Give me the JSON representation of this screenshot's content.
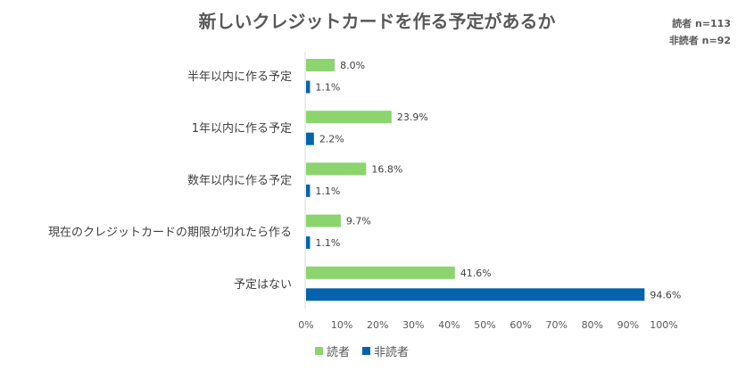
{
  "chart_data": {
    "type": "bar",
    "orientation": "horizontal",
    "title": "新しいクレジットカードを作る予定があるか",
    "categories": [
      "半年以内に作る予定",
      "1年以内に作る予定",
      "数年以内に作る予定",
      "現在のクレジットカードの期限が切れたら作る",
      "予定はない"
    ],
    "series": [
      {
        "name": "読者",
        "values": [
          8.0,
          23.9,
          16.8,
          9.7,
          41.6
        ],
        "color": "#8CD46E"
      },
      {
        "name": "非読者",
        "values": [
          1.1,
          2.2,
          1.1,
          1.1,
          94.6
        ],
        "color": "#0563AD"
      }
    ],
    "xlim": [
      0,
      100
    ],
    "xticks": [
      "0%",
      "10%",
      "20%",
      "30%",
      "40%",
      "50%",
      "60%",
      "70%",
      "80%",
      "90%",
      "100%"
    ],
    "legend": "bottom",
    "grid": false,
    "annotations": [
      "読者 n=113",
      "非読者 n=92"
    ]
  }
}
